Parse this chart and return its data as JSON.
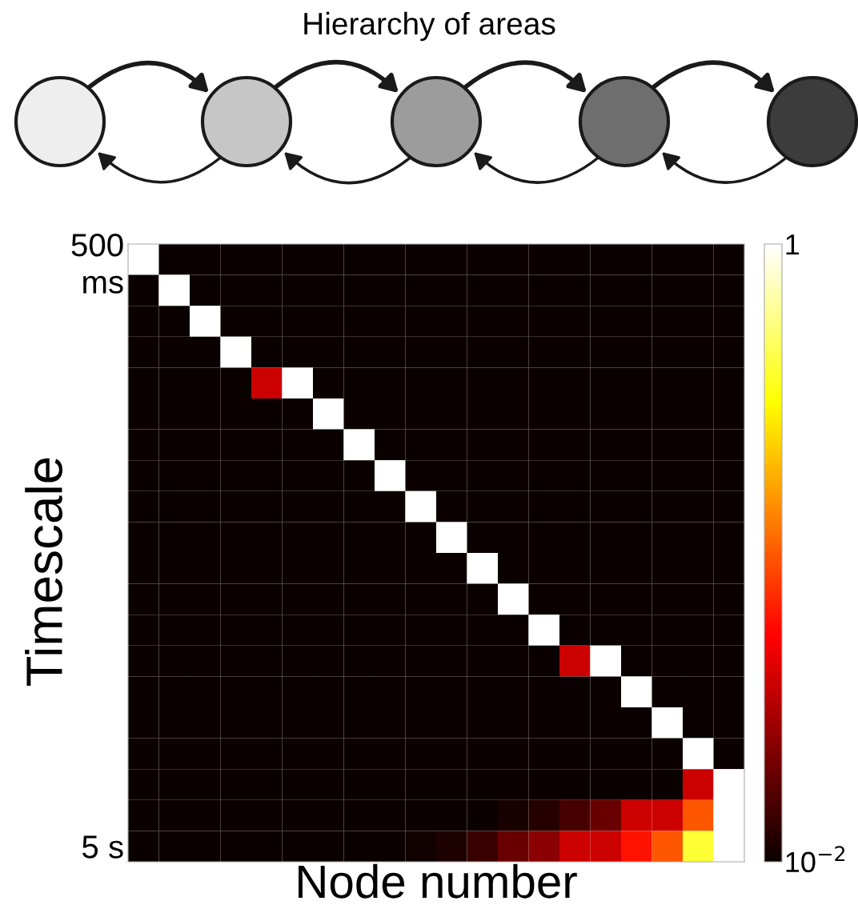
{
  "chart_data": {
    "type": "heatmap",
    "title": "Hierarchy of areas",
    "xlabel": "Node number",
    "ylabel": "Timescale",
    "categories": [
      null,
      null,
      null,
      null,
      null,
      null,
      null,
      null,
      null,
      null,
      null,
      null,
      null,
      null,
      null,
      null,
      null,
      null,
      null,
      null
    ],
    "y_categories": [
      "500\nms",
      null,
      null,
      null,
      null,
      null,
      null,
      null,
      null,
      null,
      null,
      null,
      null,
      null,
      null,
      null,
      null,
      null,
      null,
      "5 s"
    ],
    "cells": [
      [
        1,
        0.01,
        0.01,
        0.01,
        0.01,
        0.01,
        0.01,
        0.01,
        0.01,
        0.01,
        0.01,
        0.01,
        0.01,
        0.01,
        0.01,
        0.01,
        0.01,
        0.01,
        0.01,
        0.01
      ],
      [
        0.01,
        1,
        0.01,
        0.01,
        0.01,
        0.01,
        0.01,
        0.01,
        0.01,
        0.01,
        0.01,
        0.01,
        0.01,
        0.01,
        0.01,
        0.01,
        0.01,
        0.01,
        0.01,
        0.01
      ],
      [
        0.01,
        0.01,
        1,
        0.01,
        0.01,
        0.01,
        0.01,
        0.01,
        0.01,
        0.01,
        0.01,
        0.01,
        0.01,
        0.01,
        0.01,
        0.01,
        0.01,
        0.01,
        0.01,
        0.01
      ],
      [
        0.01,
        0.01,
        0.01,
        1,
        0.01,
        0.01,
        0.01,
        0.01,
        0.01,
        0.01,
        0.01,
        0.01,
        0.01,
        0.01,
        0.01,
        0.01,
        0.01,
        0.01,
        0.01,
        0.01
      ],
      [
        0.01,
        0.01,
        0.01,
        0.01,
        0.3,
        1,
        0.01,
        0.01,
        0.01,
        0.01,
        0.01,
        0.01,
        0.01,
        0.01,
        0.01,
        0.01,
        0.01,
        0.01,
        0.01,
        0.01
      ],
      [
        0.01,
        0.01,
        0.01,
        0.01,
        0.01,
        0.01,
        1,
        0.01,
        0.01,
        0.01,
        0.01,
        0.01,
        0.01,
        0.01,
        0.01,
        0.01,
        0.01,
        0.01,
        0.01,
        0.01
      ],
      [
        0.01,
        0.01,
        0.01,
        0.01,
        0.01,
        0.01,
        0.01,
        1,
        0.01,
        0.01,
        0.01,
        0.01,
        0.01,
        0.01,
        0.01,
        0.01,
        0.01,
        0.01,
        0.01,
        0.01
      ],
      [
        0.01,
        0.01,
        0.01,
        0.01,
        0.01,
        0.01,
        0.01,
        0.01,
        1,
        0.01,
        0.01,
        0.01,
        0.01,
        0.01,
        0.01,
        0.01,
        0.01,
        0.01,
        0.01,
        0.01
      ],
      [
        0.01,
        0.01,
        0.01,
        0.01,
        0.01,
        0.01,
        0.01,
        0.01,
        0.01,
        1,
        0.01,
        0.01,
        0.01,
        0.01,
        0.01,
        0.01,
        0.01,
        0.01,
        0.01,
        0.01
      ],
      [
        0.01,
        0.01,
        0.01,
        0.01,
        0.01,
        0.01,
        0.01,
        0.01,
        0.01,
        0.01,
        1,
        0.01,
        0.01,
        0.01,
        0.01,
        0.01,
        0.01,
        0.01,
        0.01,
        0.01
      ],
      [
        0.01,
        0.01,
        0.01,
        0.01,
        0.01,
        0.01,
        0.01,
        0.01,
        0.01,
        0.01,
        0.01,
        1,
        0.01,
        0.01,
        0.01,
        0.01,
        0.01,
        0.01,
        0.01,
        0.01
      ],
      [
        0.01,
        0.01,
        0.01,
        0.01,
        0.01,
        0.01,
        0.01,
        0.01,
        0.01,
        0.01,
        0.01,
        0.01,
        1,
        0.01,
        0.01,
        0.01,
        0.01,
        0.01,
        0.01,
        0.01
      ],
      [
        0.01,
        0.01,
        0.01,
        0.01,
        0.01,
        0.01,
        0.01,
        0.01,
        0.01,
        0.01,
        0.01,
        0.01,
        0.01,
        1,
        0.01,
        0.01,
        0.01,
        0.01,
        0.01,
        0.01
      ],
      [
        0.01,
        0.01,
        0.01,
        0.01,
        0.01,
        0.01,
        0.01,
        0.01,
        0.01,
        0.01,
        0.01,
        0.01,
        0.01,
        0.01,
        0.3,
        1,
        0.01,
        0.01,
        0.01,
        0.01
      ],
      [
        0.01,
        0.01,
        0.01,
        0.01,
        0.01,
        0.01,
        0.01,
        0.01,
        0.01,
        0.01,
        0.01,
        0.01,
        0.01,
        0.01,
        0.01,
        0.01,
        1,
        0.01,
        0.01,
        0.01
      ],
      [
        0.01,
        0.01,
        0.01,
        0.01,
        0.01,
        0.01,
        0.01,
        0.01,
        0.01,
        0.01,
        0.01,
        0.01,
        0.01,
        0.01,
        0.01,
        0.01,
        0.01,
        1,
        0.01,
        0.01
      ],
      [
        0.01,
        0.01,
        0.01,
        0.01,
        0.01,
        0.01,
        0.01,
        0.01,
        0.01,
        0.01,
        0.01,
        0.01,
        0.01,
        0.01,
        0.01,
        0.01,
        0.01,
        0.01,
        1,
        0.01
      ],
      [
        0.01,
        0.01,
        0.01,
        0.01,
        0.01,
        0.01,
        0.01,
        0.01,
        0.01,
        0.01,
        0.01,
        0.01,
        0.01,
        0.01,
        0.01,
        0.01,
        0.01,
        0.01,
        0.3,
        1
      ],
      [
        0.01,
        0.01,
        0.01,
        0.01,
        0.01,
        0.01,
        0.01,
        0.01,
        0.01,
        0.01,
        0.01,
        0.01,
        0.03,
        0.05,
        0.1,
        0.15,
        0.3,
        0.3,
        0.5,
        1
      ],
      [
        0.01,
        0.01,
        0.01,
        0.01,
        0.01,
        0.01,
        0.01,
        0.01,
        0.01,
        0.02,
        0.04,
        0.08,
        0.15,
        0.2,
        0.3,
        0.3,
        0.4,
        0.5,
        0.8,
        1
      ]
    ],
    "clim": [
      0.01,
      1
    ],
    "cticks": [
      {
        "value": 0.01,
        "label": "10$^{−2}$"
      },
      1
    ]
  }
}
